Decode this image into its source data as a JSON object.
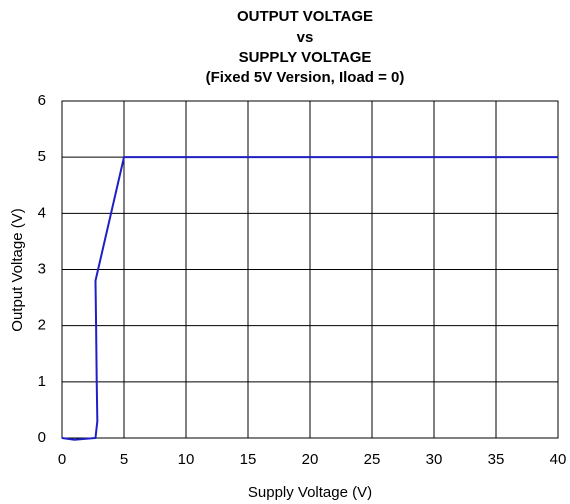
{
  "chart_data": {
    "type": "line",
    "title": [
      "OUTPUT VOLTAGE",
      "vs",
      "SUPPLY VOLTAGE",
      "(Fixed 5V Version, Iload = 0)"
    ],
    "x_label": "Supply Voltage (V)",
    "y_label": "Output Voltage (V)",
    "x": [
      0,
      1,
      2.7,
      2.85,
      2.8,
      2.75,
      2.7,
      5,
      10,
      40
    ],
    "series": [
      {
        "color": "#1f1fc8",
        "values": [
          0,
          -0.03,
          0,
          0.3,
          1,
          2,
          2.8,
          5,
          5,
          5
        ]
      }
    ],
    "xlim": [
      0,
      40
    ],
    "xticks": [
      0,
      5,
      10,
      15,
      20,
      25,
      30,
      35,
      40
    ],
    "ylim": [
      0,
      6
    ],
    "yticks": [
      0,
      1,
      2,
      3,
      4,
      5,
      6
    ],
    "grid": true
  }
}
